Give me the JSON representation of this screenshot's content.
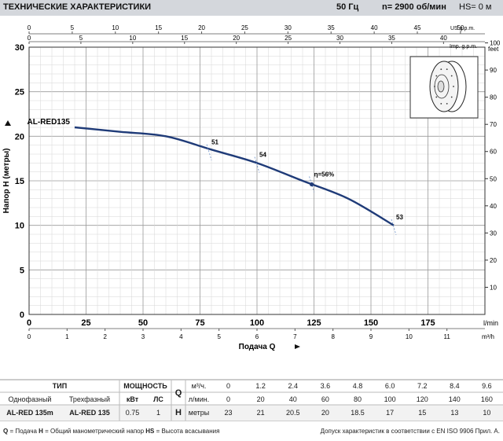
{
  "header": {
    "title": "ТЕХНИЧЕСКИЕ ХАРАКТЕРИСТИКИ",
    "frequency": "50 Гц",
    "speed": "n= 2900  об/мин",
    "hs": "HS= 0 м"
  },
  "chart_data": {
    "type": "line",
    "xlabel": "Подача  Q",
    "ylabel": "Напор  H  (метры)",
    "y2label": "feet",
    "xlim": [
      0,
      200
    ],
    "ylim": [
      0,
      30
    ],
    "x_unit": "l/min",
    "x_ticks": [
      0,
      25,
      50,
      75,
      100,
      125,
      150,
      175
    ],
    "y_ticks": [
      0,
      5,
      10,
      15,
      20,
      25,
      30
    ],
    "y2_ticks": [
      10,
      20,
      30,
      40,
      50,
      60,
      70,
      80,
      90,
      100
    ],
    "y2_unit": "feet",
    "m3h_unit": "m³/h",
    "m3h_ticks": [
      0,
      1,
      2,
      3,
      4,
      5,
      6,
      7,
      8,
      9,
      10,
      11
    ],
    "usgpm_unit": "US g.p.m.",
    "usgpm_ticks": [
      0,
      5,
      10,
      15,
      20,
      25,
      30,
      35,
      40,
      45,
      50
    ],
    "impgpm_unit": "Imp. g.p.m.",
    "impgpm_ticks": [
      0,
      5,
      10,
      15,
      20,
      25,
      30,
      35,
      40
    ],
    "series": [
      {
        "name": "AL-RED135",
        "x": [
          20,
          40,
          60,
          80,
          100,
          120,
          140,
          160
        ],
        "y": [
          21,
          20.5,
          20,
          18.5,
          17,
          15,
          13,
          10
        ]
      }
    ],
    "annotations": [
      {
        "label": "51",
        "x": 79,
        "y": 18.2
      },
      {
        "label": "54",
        "x": 100,
        "y": 16.8
      },
      {
        "label": "η=56%",
        "x": 124,
        "y": 14.6
      },
      {
        "label": "53",
        "x": 160,
        "y": 9.8
      }
    ]
  },
  "table": {
    "h_type": "ТИП",
    "h_power": "МОЩНОСТЬ",
    "h_single": "Однофазный",
    "h_three": "Трехфазный",
    "h_kw": "кВт",
    "h_hp": "ЛС",
    "q_letter": "Q",
    "h_letter": "H",
    "unit_m3h": "м³/ч.",
    "unit_lmin": "л/мин.",
    "unit_m": "метры",
    "model_single": "AL-RED 135m",
    "model_three": "AL-RED 135",
    "kw": "0.75",
    "hp": "1",
    "m3h": [
      "0",
      "1.2",
      "2.4",
      "3.6",
      "4.8",
      "6.0",
      "7.2",
      "8.4",
      "9.6"
    ],
    "lmin": [
      "0",
      "20",
      "40",
      "60",
      "80",
      "100",
      "120",
      "140",
      "160"
    ],
    "heads": [
      "23",
      "21",
      "20.5",
      "20",
      "18.5",
      "17",
      "15",
      "13",
      "10"
    ]
  },
  "footer": {
    "legend_q": "Q",
    "legend_q_text": " = Подача  ",
    "legend_h": "H",
    "legend_h_text": " = Общий манометрический напор  ",
    "legend_hs": "HS",
    "legend_hs_text": " = Высота всасывания",
    "right": "Допуск характеристик в соответствии с EN ISO 9906 Прил. А."
  }
}
